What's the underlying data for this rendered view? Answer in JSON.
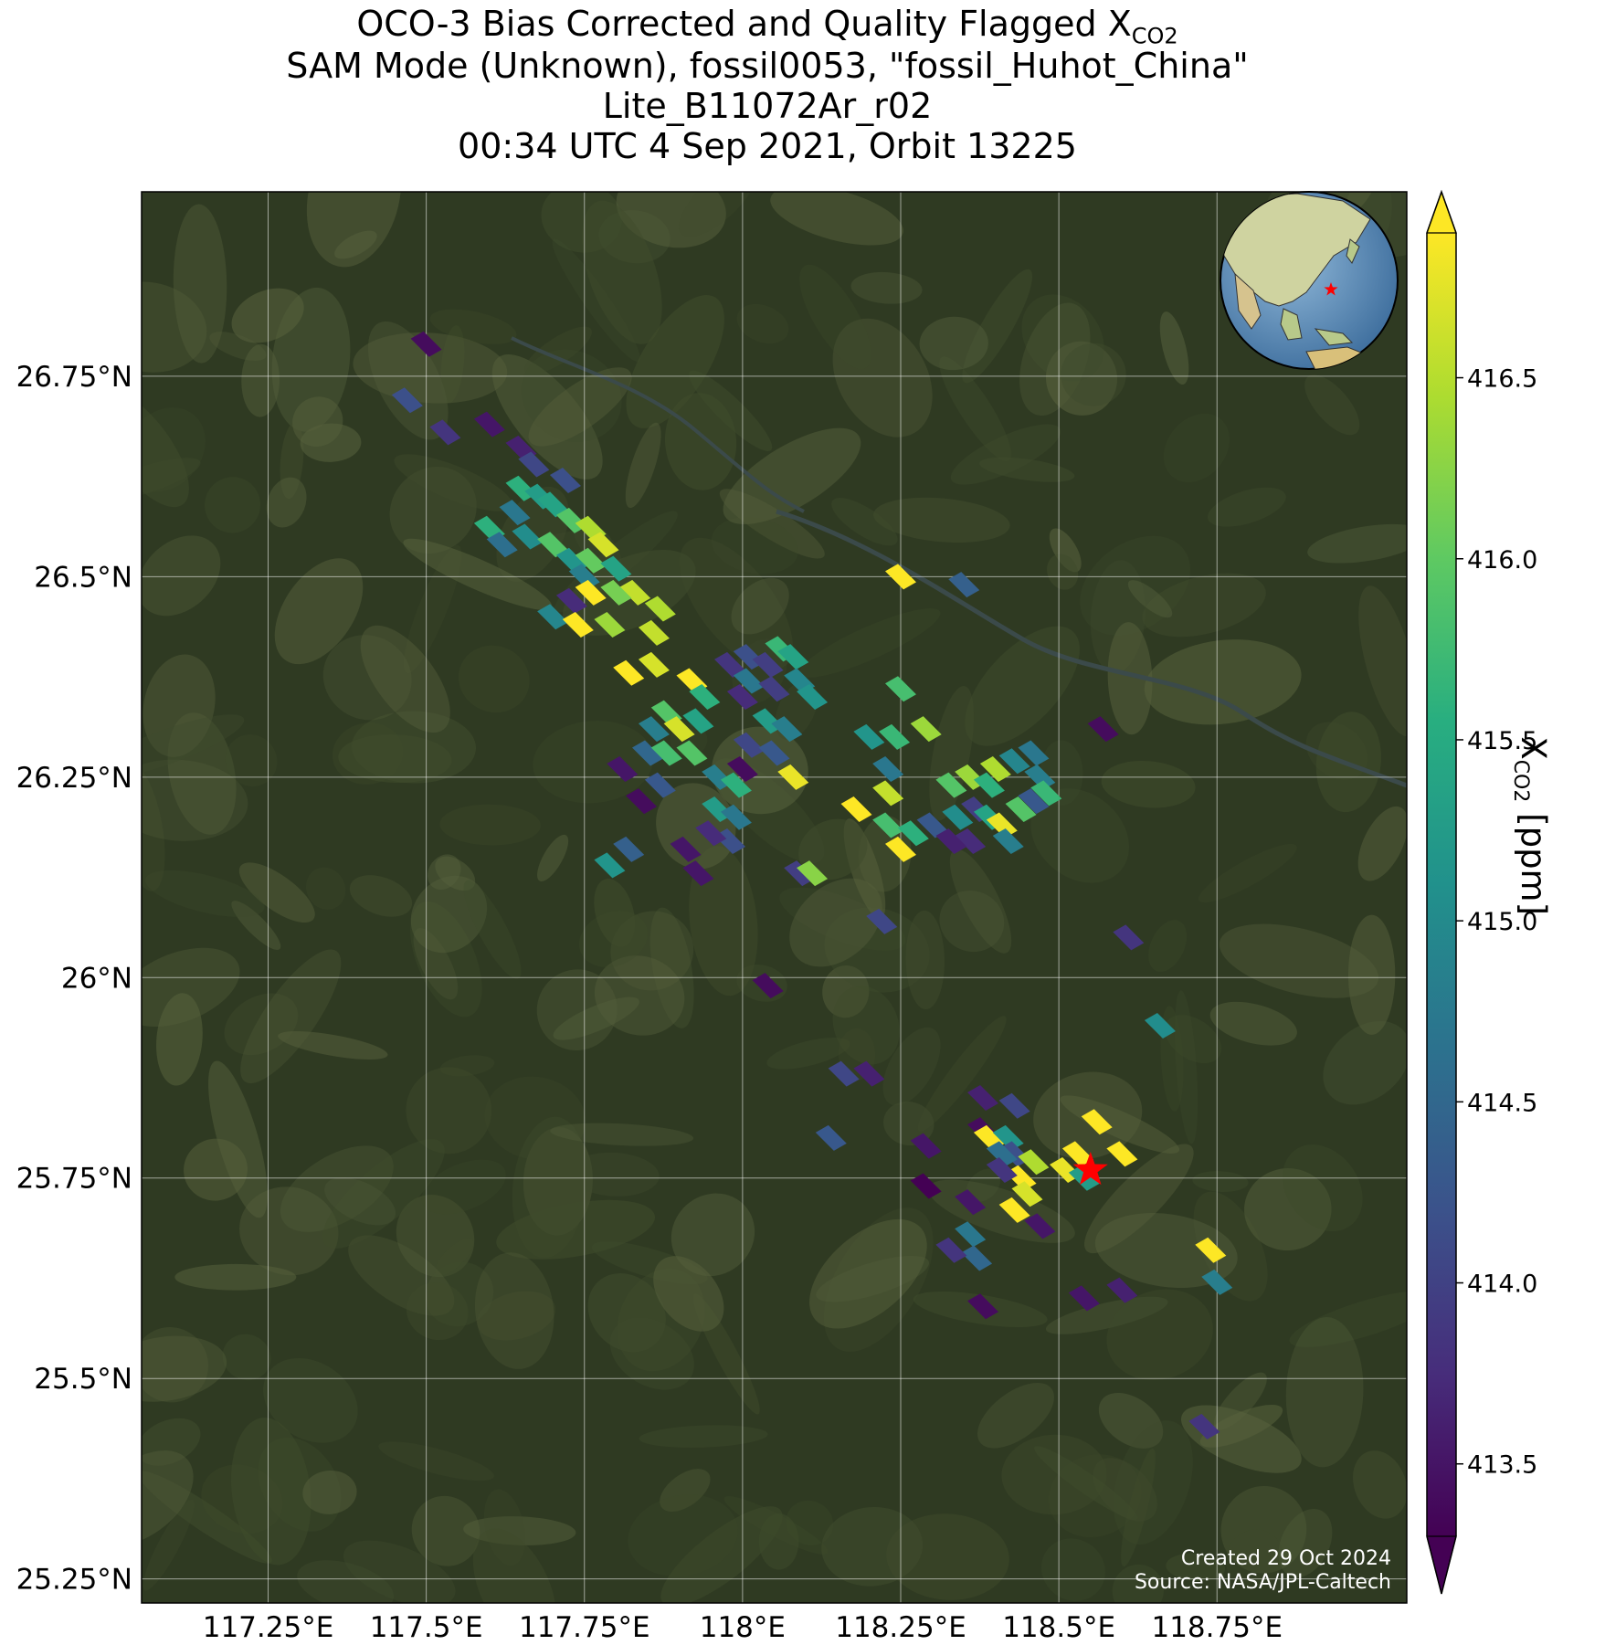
{
  "title": {
    "line1_prefix": "OCO-3 Bias Corrected and Quality Flagged X",
    "line1_sub": "CO2",
    "line2": "SAM Mode (Unknown), fossil0053, \"fossil_Huhot_China\"",
    "line3": "Lite_B11072Ar_r02",
    "line4": "00:34 UTC 4 Sep 2021, Orbit 13225"
  },
  "map": {
    "lon_range": [
      117.05,
      119.05
    ],
    "lat_range": [
      25.22,
      26.98
    ],
    "lon_ticks": [
      {
        "value": 117.25,
        "label": "117.25°E"
      },
      {
        "value": 117.5,
        "label": "117.5°E"
      },
      {
        "value": 117.75,
        "label": "117.75°E"
      },
      {
        "value": 118.0,
        "label": "118°E"
      },
      {
        "value": 118.25,
        "label": "118.25°E"
      },
      {
        "value": 118.5,
        "label": "118.5°E"
      },
      {
        "value": 118.75,
        "label": "118.75°E"
      }
    ],
    "lat_ticks": [
      {
        "value": 25.25,
        "label": "25.25°N"
      },
      {
        "value": 25.5,
        "label": "25.5°N"
      },
      {
        "value": 25.75,
        "label": "25.75°N"
      },
      {
        "value": 26.0,
        "label": "26°N"
      },
      {
        "value": 26.25,
        "label": "26.25°N"
      },
      {
        "value": 26.5,
        "label": "26.5°N"
      },
      {
        "value": 26.75,
        "label": "26.75°N"
      }
    ],
    "target": {
      "lon": 118.55,
      "lat": 25.76
    },
    "background_colors": {
      "terrain_dark": "#2f3a22",
      "terrain_mid": "#3f4b2c",
      "terrain_light": "#56603c",
      "river": "#3b4a4a"
    },
    "credit_line1": "Created 29 Oct 2024",
    "credit_line2": "Source: NASA/JPL-Caltech"
  },
  "colorbar": {
    "min": 413.3,
    "max": 416.9,
    "ticks": [
      {
        "value": 413.5,
        "label": "413.5"
      },
      {
        "value": 414.0,
        "label": "414.0"
      },
      {
        "value": 414.5,
        "label": "414.5"
      },
      {
        "value": 415.0,
        "label": "415.0"
      },
      {
        "value": 415.5,
        "label": "415.5"
      },
      {
        "value": 416.0,
        "label": "416.0"
      },
      {
        "value": 416.5,
        "label": "416.5"
      }
    ],
    "label_prefix": "X",
    "label_sub": "CO2",
    "label_suffix": " [ppm]",
    "colormap": "viridis"
  },
  "chart_data": {
    "type": "scatter",
    "x_name": "longitude",
    "y_name": "latitude",
    "value_name": "XCO2 (ppm)",
    "points": [
      {
        "lon": 117.5,
        "lat": 26.79,
        "v": 413.6
      },
      {
        "lon": 117.47,
        "lat": 26.72,
        "v": 414.3
      },
      {
        "lon": 117.53,
        "lat": 26.68,
        "v": 414.0
      },
      {
        "lon": 117.6,
        "lat": 26.69,
        "v": 413.7
      },
      {
        "lon": 117.65,
        "lat": 26.66,
        "v": 413.8
      },
      {
        "lon": 117.67,
        "lat": 26.64,
        "v": 414.2
      },
      {
        "lon": 117.72,
        "lat": 26.62,
        "v": 414.3
      },
      {
        "lon": 117.65,
        "lat": 26.61,
        "v": 415.6
      },
      {
        "lon": 117.68,
        "lat": 26.6,
        "v": 415.3
      },
      {
        "lon": 117.64,
        "lat": 26.58,
        "v": 414.8
      },
      {
        "lon": 117.7,
        "lat": 26.59,
        "v": 415.4
      },
      {
        "lon": 117.73,
        "lat": 26.57,
        "v": 415.9
      },
      {
        "lon": 117.66,
        "lat": 26.55,
        "v": 415.1
      },
      {
        "lon": 117.6,
        "lat": 26.56,
        "v": 415.6
      },
      {
        "lon": 117.62,
        "lat": 26.54,
        "v": 414.7
      },
      {
        "lon": 117.7,
        "lat": 26.54,
        "v": 415.9
      },
      {
        "lon": 117.76,
        "lat": 26.56,
        "v": 416.4
      },
      {
        "lon": 117.78,
        "lat": 26.54,
        "v": 416.6
      },
      {
        "lon": 117.73,
        "lat": 26.52,
        "v": 415.2
      },
      {
        "lon": 117.76,
        "lat": 26.52,
        "v": 416.0
      },
      {
        "lon": 117.75,
        "lat": 26.5,
        "v": 414.9
      },
      {
        "lon": 117.8,
        "lat": 26.51,
        "v": 415.4
      },
      {
        "lon": 117.76,
        "lat": 26.48,
        "v": 416.8
      },
      {
        "lon": 117.83,
        "lat": 26.48,
        "v": 416.5
      },
      {
        "lon": 117.8,
        "lat": 26.48,
        "v": 416.1
      },
      {
        "lon": 117.73,
        "lat": 26.47,
        "v": 413.9
      },
      {
        "lon": 117.87,
        "lat": 26.46,
        "v": 416.4
      },
      {
        "lon": 117.7,
        "lat": 26.45,
        "v": 415.0
      },
      {
        "lon": 117.79,
        "lat": 26.44,
        "v": 416.3
      },
      {
        "lon": 117.74,
        "lat": 26.44,
        "v": 416.8
      },
      {
        "lon": 117.86,
        "lat": 26.43,
        "v": 416.5
      },
      {
        "lon": 117.82,
        "lat": 26.38,
        "v": 416.8
      },
      {
        "lon": 117.86,
        "lat": 26.39,
        "v": 416.6
      },
      {
        "lon": 117.92,
        "lat": 26.37,
        "v": 416.8
      },
      {
        "lon": 117.94,
        "lat": 26.35,
        "v": 415.6
      },
      {
        "lon": 117.98,
        "lat": 26.39,
        "v": 414.0
      },
      {
        "lon": 118.01,
        "lat": 26.4,
        "v": 414.3
      },
      {
        "lon": 118.04,
        "lat": 26.39,
        "v": 414.1
      },
      {
        "lon": 118.06,
        "lat": 26.41,
        "v": 415.7
      },
      {
        "lon": 118.08,
        "lat": 26.4,
        "v": 415.4
      },
      {
        "lon": 118.09,
        "lat": 26.37,
        "v": 415.0
      },
      {
        "lon": 118.01,
        "lat": 26.37,
        "v": 414.8
      },
      {
        "lon": 118.05,
        "lat": 26.36,
        "v": 414.1
      },
      {
        "lon": 118.0,
        "lat": 26.35,
        "v": 413.9
      },
      {
        "lon": 118.11,
        "lat": 26.35,
        "v": 415.2
      },
      {
        "lon": 117.88,
        "lat": 26.33,
        "v": 415.9
      },
      {
        "lon": 117.9,
        "lat": 26.31,
        "v": 416.6
      },
      {
        "lon": 117.86,
        "lat": 26.31,
        "v": 414.9
      },
      {
        "lon": 117.93,
        "lat": 26.32,
        "v": 415.4
      },
      {
        "lon": 117.85,
        "lat": 26.28,
        "v": 414.6
      },
      {
        "lon": 117.88,
        "lat": 26.28,
        "v": 415.8
      },
      {
        "lon": 117.92,
        "lat": 26.28,
        "v": 415.9
      },
      {
        "lon": 118.04,
        "lat": 26.32,
        "v": 415.3
      },
      {
        "lon": 118.07,
        "lat": 26.31,
        "v": 414.9
      },
      {
        "lon": 118.01,
        "lat": 26.29,
        "v": 414.2
      },
      {
        "lon": 118.05,
        "lat": 26.28,
        "v": 414.4
      },
      {
        "lon": 117.87,
        "lat": 26.24,
        "v": 414.4
      },
      {
        "lon": 117.96,
        "lat": 26.25,
        "v": 414.9
      },
      {
        "lon": 117.99,
        "lat": 26.24,
        "v": 415.6
      },
      {
        "lon": 117.96,
        "lat": 26.21,
        "v": 415.3
      },
      {
        "lon": 117.99,
        "lat": 26.2,
        "v": 414.8
      },
      {
        "lon": 117.98,
        "lat": 26.17,
        "v": 414.3
      },
      {
        "lon": 117.95,
        "lat": 26.18,
        "v": 413.9
      },
      {
        "lon": 117.91,
        "lat": 26.16,
        "v": 413.7
      },
      {
        "lon": 117.93,
        "lat": 26.13,
        "v": 413.7
      },
      {
        "lon": 117.81,
        "lat": 26.26,
        "v": 413.7
      },
      {
        "lon": 117.84,
        "lat": 26.22,
        "v": 413.6
      },
      {
        "lon": 117.82,
        "lat": 26.16,
        "v": 414.5
      },
      {
        "lon": 117.79,
        "lat": 26.14,
        "v": 415.2
      },
      {
        "lon": 118.0,
        "lat": 26.26,
        "v": 413.6
      },
      {
        "lon": 118.08,
        "lat": 26.25,
        "v": 416.7
      },
      {
        "lon": 118.09,
        "lat": 26.13,
        "v": 414.1
      },
      {
        "lon": 118.11,
        "lat": 26.13,
        "v": 416.2
      },
      {
        "lon": 118.2,
        "lat": 26.3,
        "v": 415.2
      },
      {
        "lon": 118.24,
        "lat": 26.3,
        "v": 415.7
      },
      {
        "lon": 118.29,
        "lat": 26.31,
        "v": 416.3
      },
      {
        "lon": 118.25,
        "lat": 26.36,
        "v": 415.8
      },
      {
        "lon": 118.23,
        "lat": 26.26,
        "v": 414.8
      },
      {
        "lon": 118.18,
        "lat": 26.21,
        "v": 416.8
      },
      {
        "lon": 118.23,
        "lat": 26.23,
        "v": 416.5
      },
      {
        "lon": 118.23,
        "lat": 26.19,
        "v": 415.8
      },
      {
        "lon": 118.27,
        "lat": 26.18,
        "v": 415.6
      },
      {
        "lon": 118.25,
        "lat": 26.16,
        "v": 416.8
      },
      {
        "lon": 118.3,
        "lat": 26.19,
        "v": 414.4
      },
      {
        "lon": 118.34,
        "lat": 26.2,
        "v": 415.1
      },
      {
        "lon": 118.36,
        "lat": 26.17,
        "v": 413.9
      },
      {
        "lon": 118.33,
        "lat": 26.24,
        "v": 415.9
      },
      {
        "lon": 118.36,
        "lat": 26.25,
        "v": 416.3
      },
      {
        "lon": 118.39,
        "lat": 26.24,
        "v": 415.6
      },
      {
        "lon": 118.4,
        "lat": 26.26,
        "v": 416.4
      },
      {
        "lon": 118.37,
        "lat": 26.21,
        "v": 414.1
      },
      {
        "lon": 118.39,
        "lat": 26.2,
        "v": 415.4
      },
      {
        "lon": 118.41,
        "lat": 26.19,
        "v": 416.7
      },
      {
        "lon": 118.44,
        "lat": 26.21,
        "v": 415.9
      },
      {
        "lon": 118.42,
        "lat": 26.17,
        "v": 414.9
      },
      {
        "lon": 118.46,
        "lat": 26.22,
        "v": 414.4
      },
      {
        "lon": 118.47,
        "lat": 26.25,
        "v": 414.9
      },
      {
        "lon": 118.43,
        "lat": 26.27,
        "v": 415.0
      },
      {
        "lon": 118.46,
        "lat": 26.28,
        "v": 414.8
      },
      {
        "lon": 118.48,
        "lat": 26.23,
        "v": 415.7
      },
      {
        "lon": 118.33,
        "lat": 26.17,
        "v": 413.8
      },
      {
        "lon": 118.25,
        "lat": 26.5,
        "v": 416.8
      },
      {
        "lon": 118.35,
        "lat": 26.49,
        "v": 414.5
      },
      {
        "lon": 118.57,
        "lat": 26.31,
        "v": 413.6
      },
      {
        "lon": 118.61,
        "lat": 26.05,
        "v": 414.0
      },
      {
        "lon": 118.66,
        "lat": 25.94,
        "v": 415.1
      },
      {
        "lon": 118.22,
        "lat": 26.07,
        "v": 414.2
      },
      {
        "lon": 118.04,
        "lat": 25.99,
        "v": 413.6
      },
      {
        "lon": 118.2,
        "lat": 25.88,
        "v": 413.8
      },
      {
        "lon": 118.16,
        "lat": 25.88,
        "v": 414.2
      },
      {
        "lon": 118.14,
        "lat": 25.8,
        "v": 414.4
      },
      {
        "lon": 118.38,
        "lat": 25.85,
        "v": 413.8
      },
      {
        "lon": 118.38,
        "lat": 25.81,
        "v": 413.6
      },
      {
        "lon": 118.39,
        "lat": 25.8,
        "v": 416.8
      },
      {
        "lon": 118.43,
        "lat": 25.84,
        "v": 414.2
      },
      {
        "lon": 118.42,
        "lat": 25.8,
        "v": 415.2
      },
      {
        "lon": 118.43,
        "lat": 25.78,
        "v": 414.3
      },
      {
        "lon": 118.44,
        "lat": 25.75,
        "v": 416.8
      },
      {
        "lon": 118.46,
        "lat": 25.77,
        "v": 416.4
      },
      {
        "lon": 118.41,
        "lat": 25.78,
        "v": 414.7
      },
      {
        "lon": 118.41,
        "lat": 25.76,
        "v": 414.0
      },
      {
        "lon": 118.45,
        "lat": 25.73,
        "v": 416.6
      },
      {
        "lon": 118.43,
        "lat": 25.71,
        "v": 416.8
      },
      {
        "lon": 118.47,
        "lat": 25.69,
        "v": 413.7
      },
      {
        "lon": 118.51,
        "lat": 25.76,
        "v": 416.7
      },
      {
        "lon": 118.53,
        "lat": 25.78,
        "v": 416.9
      },
      {
        "lon": 118.54,
        "lat": 25.75,
        "v": 415.3
      },
      {
        "lon": 118.56,
        "lat": 25.82,
        "v": 416.8
      },
      {
        "lon": 118.6,
        "lat": 25.78,
        "v": 416.9
      },
      {
        "lon": 118.29,
        "lat": 25.79,
        "v": 413.7
      },
      {
        "lon": 118.29,
        "lat": 25.74,
        "v": 413.5
      },
      {
        "lon": 118.36,
        "lat": 25.72,
        "v": 413.7
      },
      {
        "lon": 118.36,
        "lat": 25.68,
        "v": 414.8
      },
      {
        "lon": 118.37,
        "lat": 25.65,
        "v": 414.6
      },
      {
        "lon": 118.33,
        "lat": 25.66,
        "v": 414.0
      },
      {
        "lon": 118.38,
        "lat": 25.59,
        "v": 413.6
      },
      {
        "lon": 118.54,
        "lat": 25.6,
        "v": 413.7
      },
      {
        "lon": 118.6,
        "lat": 25.61,
        "v": 413.8
      },
      {
        "lon": 118.74,
        "lat": 25.66,
        "v": 416.8
      },
      {
        "lon": 118.75,
        "lat": 25.62,
        "v": 414.9
      },
      {
        "lon": 118.73,
        "lat": 25.44,
        "v": 414.0
      }
    ]
  }
}
